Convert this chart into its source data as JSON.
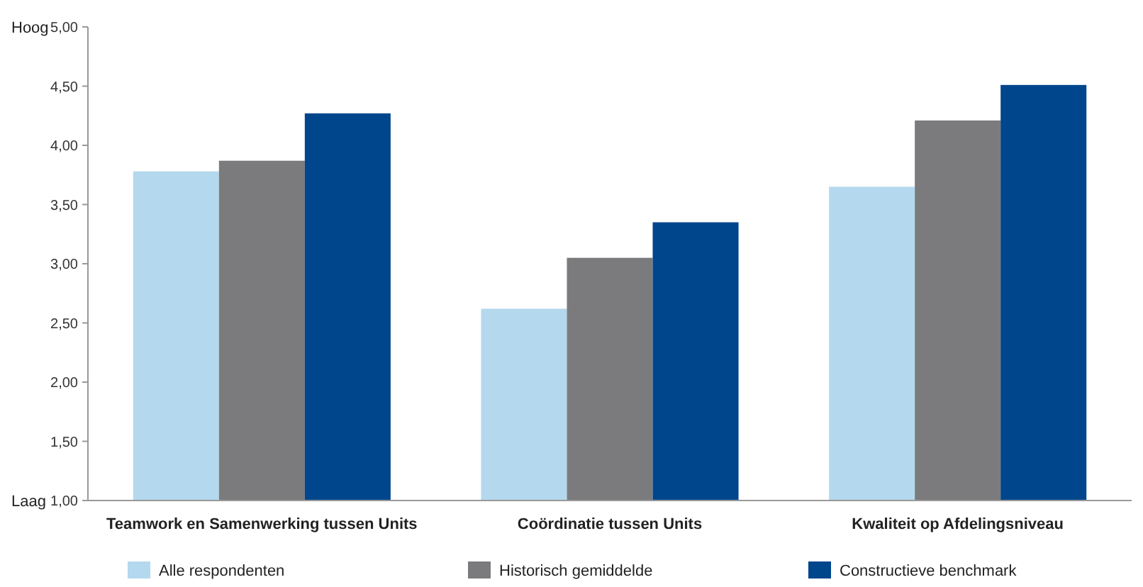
{
  "chart_data": {
    "type": "bar",
    "categories": [
      "Teamwork en Samenwerking tussen Units",
      "Coördinatie tussen Units",
      "Kwaliteit op Afdelingsniveau"
    ],
    "series": [
      {
        "name": "Alle respondenten",
        "color": "#b4d8ee",
        "values": [
          3.78,
          2.62,
          3.65
        ]
      },
      {
        "name": "Historisch gemiddelde",
        "color": "#7b7b7d",
        "values": [
          3.87,
          3.05,
          4.21
        ]
      },
      {
        "name": "Constructieve benchmark",
        "color": "#00468c",
        "values": [
          4.27,
          3.35,
          4.51
        ]
      }
    ],
    "ylim": [
      1,
      5
    ],
    "yticks": [
      {
        "value": 1,
        "label": "1,00"
      },
      {
        "value": 1.5,
        "label": "1,50"
      },
      {
        "value": 2,
        "label": "2,00"
      },
      {
        "value": 2.5,
        "label": "2,50"
      },
      {
        "value": 3,
        "label": "3,00"
      },
      {
        "value": 3.5,
        "label": "3,50"
      },
      {
        "value": 4,
        "label": "4,00"
      },
      {
        "value": 4.5,
        "label": "4,50"
      },
      {
        "value": 5,
        "label": "5,00"
      }
    ],
    "annotations": [
      "Hoog",
      "Laag"
    ],
    "legend": "bottom",
    "grid": false
  }
}
